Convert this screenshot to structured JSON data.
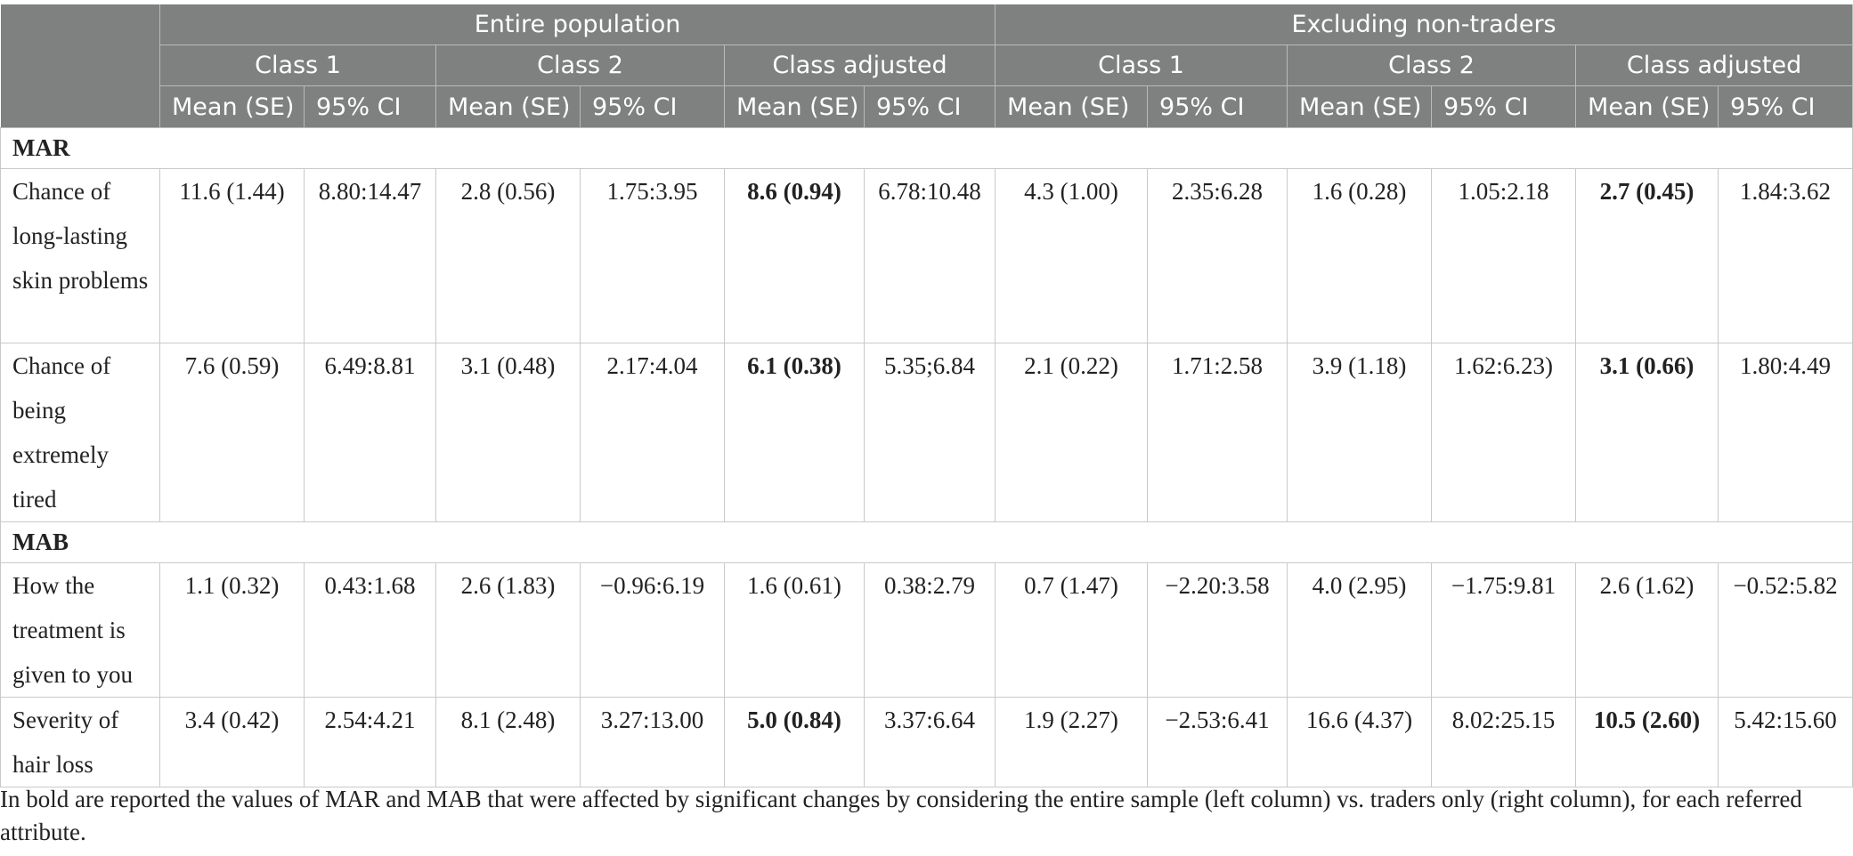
{
  "header": {
    "groups": [
      "Entire population",
      "Excluding non-traders"
    ],
    "classes": [
      "Class 1",
      "Class 2",
      "Class adjusted",
      "Class 1",
      "Class 2",
      "Class adjusted"
    ],
    "stats": [
      "Mean (SE)",
      "95% CI",
      "Mean (SE)",
      "95% CI",
      "Mean (SE)",
      "95% CI",
      "Mean (SE)",
      "95% CI",
      "Mean (SE)",
      "95% CI",
      "Mean (SE)",
      "95% CI"
    ]
  },
  "sections": [
    {
      "title": "MAR",
      "rows": [
        {
          "label": "Chance of long-lasting skin problems",
          "cells": [
            "11.6 (1.44)",
            "8.80:14.47",
            "2.8 (0.56)",
            "1.75:3.95",
            "8.6 (0.94)",
            "6.78:10.48",
            "4.3 (1.00)",
            "2.35:6.28",
            "1.6 (0.28)",
            "1.05:2.18",
            "2.7 (0.45)",
            "1.84:3.62"
          ]
        },
        {
          "label": "Chance of being extremely tired",
          "cells": [
            "7.6 (0.59)",
            "6.49:8.81",
            "3.1 (0.48)",
            "2.17:4.04",
            "6.1 (0.38)",
            "5.35;6.84",
            "2.1 (0.22)",
            "1.71:2.58",
            "3.9 (1.18)",
            "1.62:6.23)",
            "3.1 (0.66)",
            "1.80:4.49"
          ]
        }
      ]
    },
    {
      "title": "MAB",
      "rows": [
        {
          "label": "How the treatment is given to you",
          "cells": [
            "1.1 (0.32)",
            "0.43:1.68",
            "2.6 (1.83)",
            "−0.96:6.19",
            "1.6 (0.61)",
            "0.38:2.79",
            "0.7 (1.47)",
            "−2.20:3.58",
            "4.0 (2.95)",
            "−1.75:9.81",
            "2.6 (1.62)",
            "−0.52:5.82"
          ]
        },
        {
          "label": "Severity of hair loss",
          "cells": [
            "3.4 (0.42)",
            "2.54:4.21",
            "8.1 (2.48)",
            "3.27:13.00",
            "5.0 (0.84)",
            "3.37:6.64",
            "1.9 (2.27)",
            "−2.53:6.41",
            "16.6 (4.37)",
            "8.02:25.15",
            "10.5 (2.60)",
            "5.42:15.60"
          ]
        }
      ]
    }
  ],
  "footnote": "In bold are reported the values of MAR and MAB that were affected by significant changes by considering the entire sample (left column) vs. traders only (right column), for each referred attribute.",
  "colors": {
    "header_bg": "#7f8080",
    "header_text": "#ffffff",
    "grid": "#c9c9c9"
  }
}
